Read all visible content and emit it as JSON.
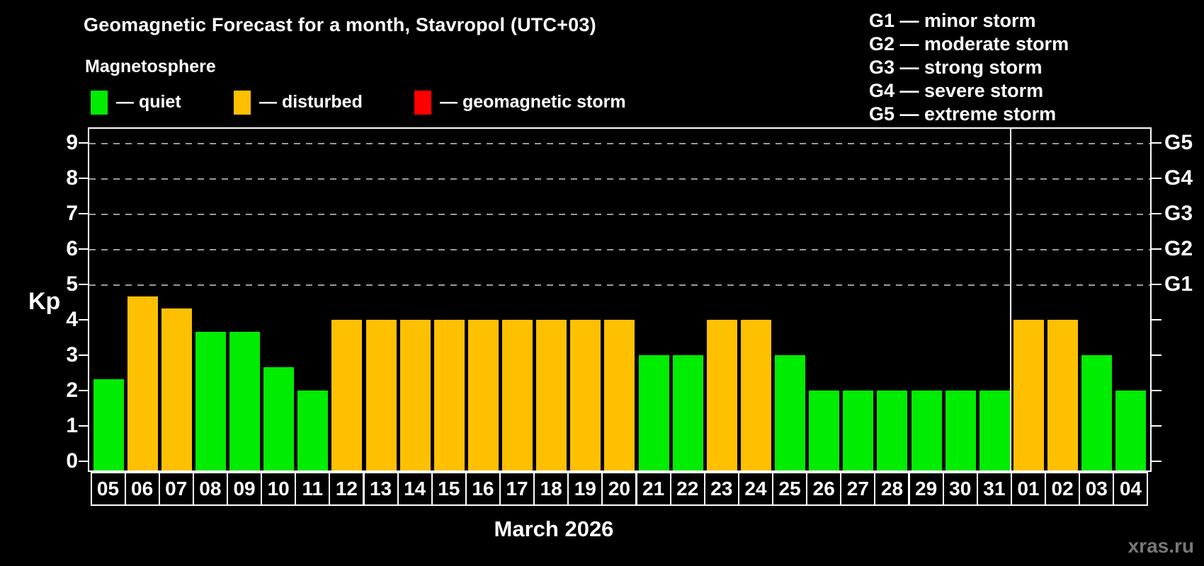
{
  "header": {
    "title": "Geomagnetic Forecast for a month, Stavropol (UTC+03)",
    "subtitle": "Magnetosphere"
  },
  "legend": {
    "items": [
      {
        "key": "quiet",
        "label": "— quiet",
        "color": "#00ec00"
      },
      {
        "key": "disturbed",
        "label": "— disturbed",
        "color": "#ffc002"
      },
      {
        "key": "storm",
        "label": "— geomagnetic storm",
        "color": "#ff0000"
      }
    ]
  },
  "storm_scale": {
    "items": [
      "G1 — minor storm",
      "G2 — moderate storm",
      "G3 — strong storm",
      "G4 — severe storm",
      "G5 — extreme storm"
    ]
  },
  "axes": {
    "y_label": "Kp",
    "y_ticks": [
      0,
      1,
      2,
      3,
      4,
      5,
      6,
      7,
      8,
      9
    ],
    "right_labels": [
      {
        "value": 5,
        "label": "G1"
      },
      {
        "value": 6,
        "label": "G2"
      },
      {
        "value": 7,
        "label": "G3"
      },
      {
        "value": 8,
        "label": "G4"
      },
      {
        "value": 9,
        "label": "G5"
      }
    ],
    "x_label": "March 2026"
  },
  "watermark": "xras.ru",
  "chart_data": {
    "type": "bar",
    "title": "Geomagnetic Forecast for a month, Stavropol (UTC+03)",
    "subtitle": "Magnetosphere",
    "xlabel": "March 2026",
    "ylabel": "Kp",
    "ylim": [
      0,
      9.45
    ],
    "grid": "dashed horizontal at Kp 5-9",
    "gridlines_at": [
      5,
      6,
      7,
      8,
      9
    ],
    "legend_position": "top-left",
    "month_separator_after": "31",
    "categories": [
      "05",
      "06",
      "07",
      "08",
      "09",
      "10",
      "11",
      "12",
      "13",
      "14",
      "15",
      "16",
      "17",
      "18",
      "19",
      "20",
      "21",
      "22",
      "23",
      "24",
      "25",
      "26",
      "27",
      "28",
      "29",
      "30",
      "31",
      "01",
      "02",
      "03",
      "04"
    ],
    "values": [
      2.33,
      4.67,
      4.33,
      3.67,
      3.67,
      2.67,
      2,
      4,
      4,
      4,
      4,
      4,
      4,
      4,
      4,
      4,
      3,
      3,
      4,
      4,
      3,
      2,
      2,
      2,
      2,
      2,
      2,
      4,
      4,
      3,
      2
    ],
    "statuses": [
      "quiet",
      "disturbed",
      "disturbed",
      "quiet",
      "quiet",
      "quiet",
      "quiet",
      "disturbed",
      "disturbed",
      "disturbed",
      "disturbed",
      "disturbed",
      "disturbed",
      "disturbed",
      "disturbed",
      "disturbed",
      "quiet",
      "quiet",
      "disturbed",
      "disturbed",
      "quiet",
      "quiet",
      "quiet",
      "quiet",
      "quiet",
      "quiet",
      "quiet",
      "disturbed",
      "disturbed",
      "quiet",
      "quiet"
    ],
    "colors": {
      "quiet": "#00ec00",
      "disturbed": "#ffc002",
      "storm": "#ff0000"
    }
  }
}
